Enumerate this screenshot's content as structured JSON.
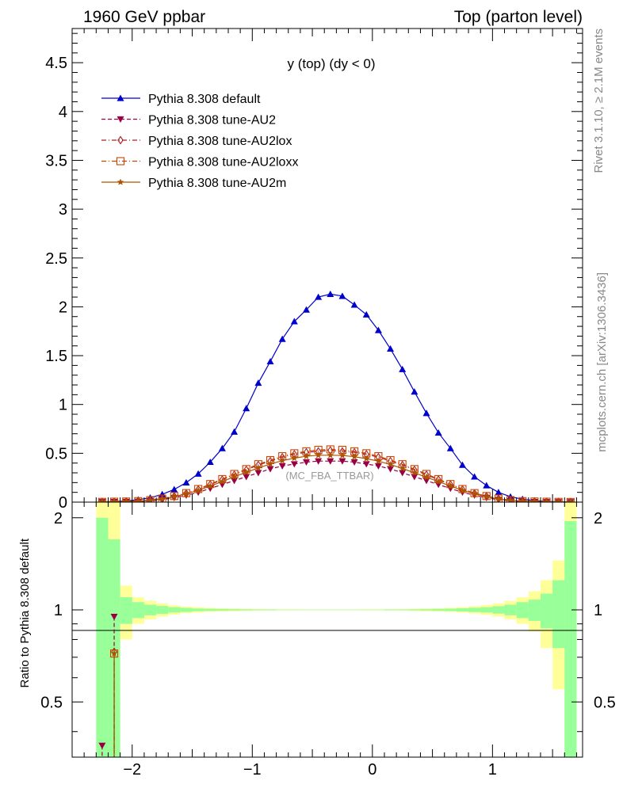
{
  "header": {
    "left": "1960 GeV ppbar",
    "right": "Top (parton level)"
  },
  "side_labels": {
    "events": "Rivet 3.1.10, ≥ 2.1M events",
    "source": "mcplots.cern.ch [arXiv:1306.3436]"
  },
  "chart_data": [
    {
      "type": "line",
      "title": "y (top) (dy < 0)",
      "annotation": "(MC_FBA_TTBAR)",
      "xlim": [
        -2.5,
        1.75
      ],
      "ylim": [
        0,
        4.85
      ],
      "y_ticks": [
        0,
        0.5,
        1,
        1.5,
        2,
        2.5,
        3,
        3.5,
        4,
        4.5
      ],
      "y_tick_labels": [
        "0",
        "0.5",
        "1",
        "1.5",
        "2",
        "2.5",
        "3",
        "3.5",
        "4",
        "4.5"
      ],
      "x": [
        -2.25,
        -2.15,
        -2.05,
        -1.95,
        -1.85,
        -1.75,
        -1.65,
        -1.55,
        -1.45,
        -1.35,
        -1.25,
        -1.15,
        -1.05,
        -0.95,
        -0.85,
        -0.75,
        -0.65,
        -0.55,
        -0.45,
        -0.35,
        -0.25,
        -0.15,
        -0.05,
        0.05,
        0.15,
        0.25,
        0.35,
        0.45,
        0.55,
        0.65,
        0.75,
        0.85,
        0.95,
        1.05,
        1.15,
        1.25,
        1.35,
        1.45,
        1.55,
        1.65
      ],
      "series": [
        {
          "name": "Pythia 8.308 default",
          "color": "#0000cc",
          "marker": "triangle-up",
          "line": "solid",
          "values": [
            0.003,
            0.006,
            0.012,
            0.024,
            0.045,
            0.08,
            0.13,
            0.2,
            0.29,
            0.41,
            0.55,
            0.72,
            0.96,
            1.22,
            1.44,
            1.67,
            1.85,
            1.97,
            2.1,
            2.13,
            2.11,
            2.02,
            1.92,
            1.76,
            1.57,
            1.36,
            1.13,
            0.91,
            0.71,
            0.55,
            0.38,
            0.26,
            0.17,
            0.1,
            0.055,
            0.03,
            0.015,
            0.007,
            0.003,
            0.001
          ]
        },
        {
          "name": "Pythia 8.308 tune-AU2",
          "color": "#990044",
          "marker": "triangle-down",
          "line": "dashed",
          "values": [
            0.002,
            0.003,
            0.004,
            0.006,
            0.012,
            0.025,
            0.045,
            0.07,
            0.1,
            0.14,
            0.18,
            0.22,
            0.26,
            0.3,
            0.34,
            0.37,
            0.39,
            0.41,
            0.42,
            0.42,
            0.42,
            0.41,
            0.39,
            0.37,
            0.34,
            0.3,
            0.26,
            0.22,
            0.18,
            0.14,
            0.1,
            0.07,
            0.045,
            0.025,
            0.012,
            0.006,
            0.003,
            0.002,
            0.001,
            0.001
          ]
        },
        {
          "name": "Pythia 8.308 tune-AU2lox",
          "color": "#aa2222",
          "marker": "diamond-open",
          "line": "dashdot",
          "values": [
            0.002,
            0.004,
            0.006,
            0.01,
            0.02,
            0.035,
            0.06,
            0.09,
            0.13,
            0.18,
            0.23,
            0.28,
            0.33,
            0.38,
            0.42,
            0.46,
            0.49,
            0.51,
            0.52,
            0.53,
            0.52,
            0.51,
            0.49,
            0.46,
            0.42,
            0.38,
            0.33,
            0.28,
            0.23,
            0.18,
            0.13,
            0.09,
            0.06,
            0.035,
            0.02,
            0.01,
            0.006,
            0.004,
            0.002,
            0.001
          ]
        },
        {
          "name": "Pythia 8.308 tune-AU2loxx",
          "color": "#cc4400",
          "marker": "square-open",
          "line": "dashdot",
          "values": [
            0.002,
            0.004,
            0.006,
            0.01,
            0.02,
            0.036,
            0.062,
            0.092,
            0.134,
            0.185,
            0.236,
            0.288,
            0.338,
            0.388,
            0.43,
            0.47,
            0.5,
            0.52,
            0.535,
            0.54,
            0.535,
            0.52,
            0.5,
            0.47,
            0.43,
            0.388,
            0.338,
            0.288,
            0.236,
            0.185,
            0.134,
            0.092,
            0.062,
            0.036,
            0.02,
            0.01,
            0.006,
            0.004,
            0.002,
            0.001
          ]
        },
        {
          "name": "Pythia 8.308 tune-AU2m",
          "color": "#aa5500",
          "marker": "star",
          "line": "solid",
          "values": [
            0.002,
            0.004,
            0.006,
            0.009,
            0.018,
            0.032,
            0.056,
            0.085,
            0.12,
            0.165,
            0.21,
            0.26,
            0.305,
            0.35,
            0.39,
            0.425,
            0.45,
            0.47,
            0.48,
            0.48,
            0.478,
            0.465,
            0.445,
            0.42,
            0.385,
            0.345,
            0.3,
            0.255,
            0.21,
            0.165,
            0.12,
            0.085,
            0.056,
            0.032,
            0.018,
            0.009,
            0.006,
            0.004,
            0.002,
            0.001
          ]
        }
      ]
    },
    {
      "type": "line",
      "ylabel": "Ratio to Pythia 8.308 default",
      "xlim": [
        -2.5,
        1.75
      ],
      "ylim": [
        0.33,
        2.25
      ],
      "x_ticks": [
        -2,
        -1,
        0,
        1
      ],
      "x_tick_labels": [
        "−2",
        "−1",
        "0",
        "1"
      ],
      "y_ticks": [
        0.5,
        1,
        2
      ],
      "y_tick_labels": [
        "0.5",
        "1",
        "2"
      ],
      "bands": {
        "x_edges": [
          -2.3,
          -2.2,
          -2.1,
          -2.0,
          -1.9,
          -1.8,
          -1.7,
          -1.6,
          -1.5,
          -1.4,
          -1.3,
          -1.2,
          -1.1,
          -1.0,
          -0.9,
          -0.8,
          -0.7,
          -0.6,
          -0.5,
          -0.4,
          -0.3,
          -0.2,
          -0.1,
          0.0,
          0.1,
          0.2,
          0.3,
          0.4,
          0.5,
          0.6,
          0.7,
          0.8,
          0.9,
          1.0,
          1.1,
          1.2,
          1.3,
          1.4,
          1.5,
          1.6,
          1.7
        ],
        "yellow_upper": [
          2.4,
          2.4,
          1.2,
          1.1,
          1.07,
          1.05,
          1.035,
          1.025,
          1.02,
          1.015,
          1.012,
          1.01,
          1.008,
          1.006,
          1.005,
          1.004,
          1.004,
          1.003,
          1.003,
          1.003,
          1.003,
          1.003,
          1.004,
          1.004,
          1.005,
          1.006,
          1.008,
          1.01,
          1.012,
          1.016,
          1.02,
          1.028,
          1.037,
          1.05,
          1.07,
          1.1,
          1.15,
          1.25,
          1.45,
          2.4
        ],
        "yellow_lower": [
          0.2,
          0.2,
          0.8,
          0.9,
          0.93,
          0.95,
          0.965,
          0.975,
          0.98,
          0.985,
          0.988,
          0.99,
          0.992,
          0.994,
          0.995,
          0.996,
          0.996,
          0.997,
          0.997,
          0.997,
          0.997,
          0.997,
          0.996,
          0.996,
          0.995,
          0.994,
          0.992,
          0.99,
          0.988,
          0.984,
          0.98,
          0.972,
          0.963,
          0.95,
          0.93,
          0.9,
          0.85,
          0.75,
          0.55,
          0.2
        ],
        "green_upper": [
          2.0,
          1.7,
          1.1,
          1.06,
          1.04,
          1.03,
          1.02,
          1.015,
          1.01,
          1.008,
          1.006,
          1.005,
          1.004,
          1.003,
          1.003,
          1.002,
          1.002,
          1.002,
          1.002,
          1.002,
          1.002,
          1.002,
          1.002,
          1.002,
          1.003,
          1.003,
          1.004,
          1.005,
          1.007,
          1.009,
          1.012,
          1.016,
          1.02,
          1.028,
          1.04,
          1.06,
          1.08,
          1.13,
          1.25,
          1.95
        ],
        "green_lower": [
          0.2,
          0.2,
          0.9,
          0.94,
          0.96,
          0.97,
          0.98,
          0.985,
          0.99,
          0.992,
          0.994,
          0.995,
          0.996,
          0.997,
          0.997,
          0.998,
          0.998,
          0.998,
          0.998,
          0.998,
          0.998,
          0.998,
          0.998,
          0.998,
          0.997,
          0.997,
          0.996,
          0.995,
          0.993,
          0.991,
          0.988,
          0.984,
          0.98,
          0.972,
          0.96,
          0.94,
          0.92,
          0.87,
          0.75,
          0.2
        ]
      },
      "ratio_spikes": [
        {
          "series": "Pythia 8.308 tune-AU2",
          "color": "#990044",
          "x": [
            -2.25,
            -2.15
          ],
          "values": [
            0.36,
            0.95
          ]
        },
        {
          "series": "Pythia 8.308 tune-AU2lox",
          "color": "#aa2222",
          "x": [
            -2.15
          ],
          "values": [
            0.73
          ]
        },
        {
          "series": "Pythia 8.308 tune-AU2loxx",
          "color": "#cc4400",
          "x": [
            -2.15
          ],
          "values": [
            0.72
          ]
        },
        {
          "series": "Pythia 8.308 tune-AU2m",
          "color": "#aa5500",
          "x": [
            -2.15
          ],
          "values": [
            0.72
          ]
        }
      ]
    }
  ]
}
